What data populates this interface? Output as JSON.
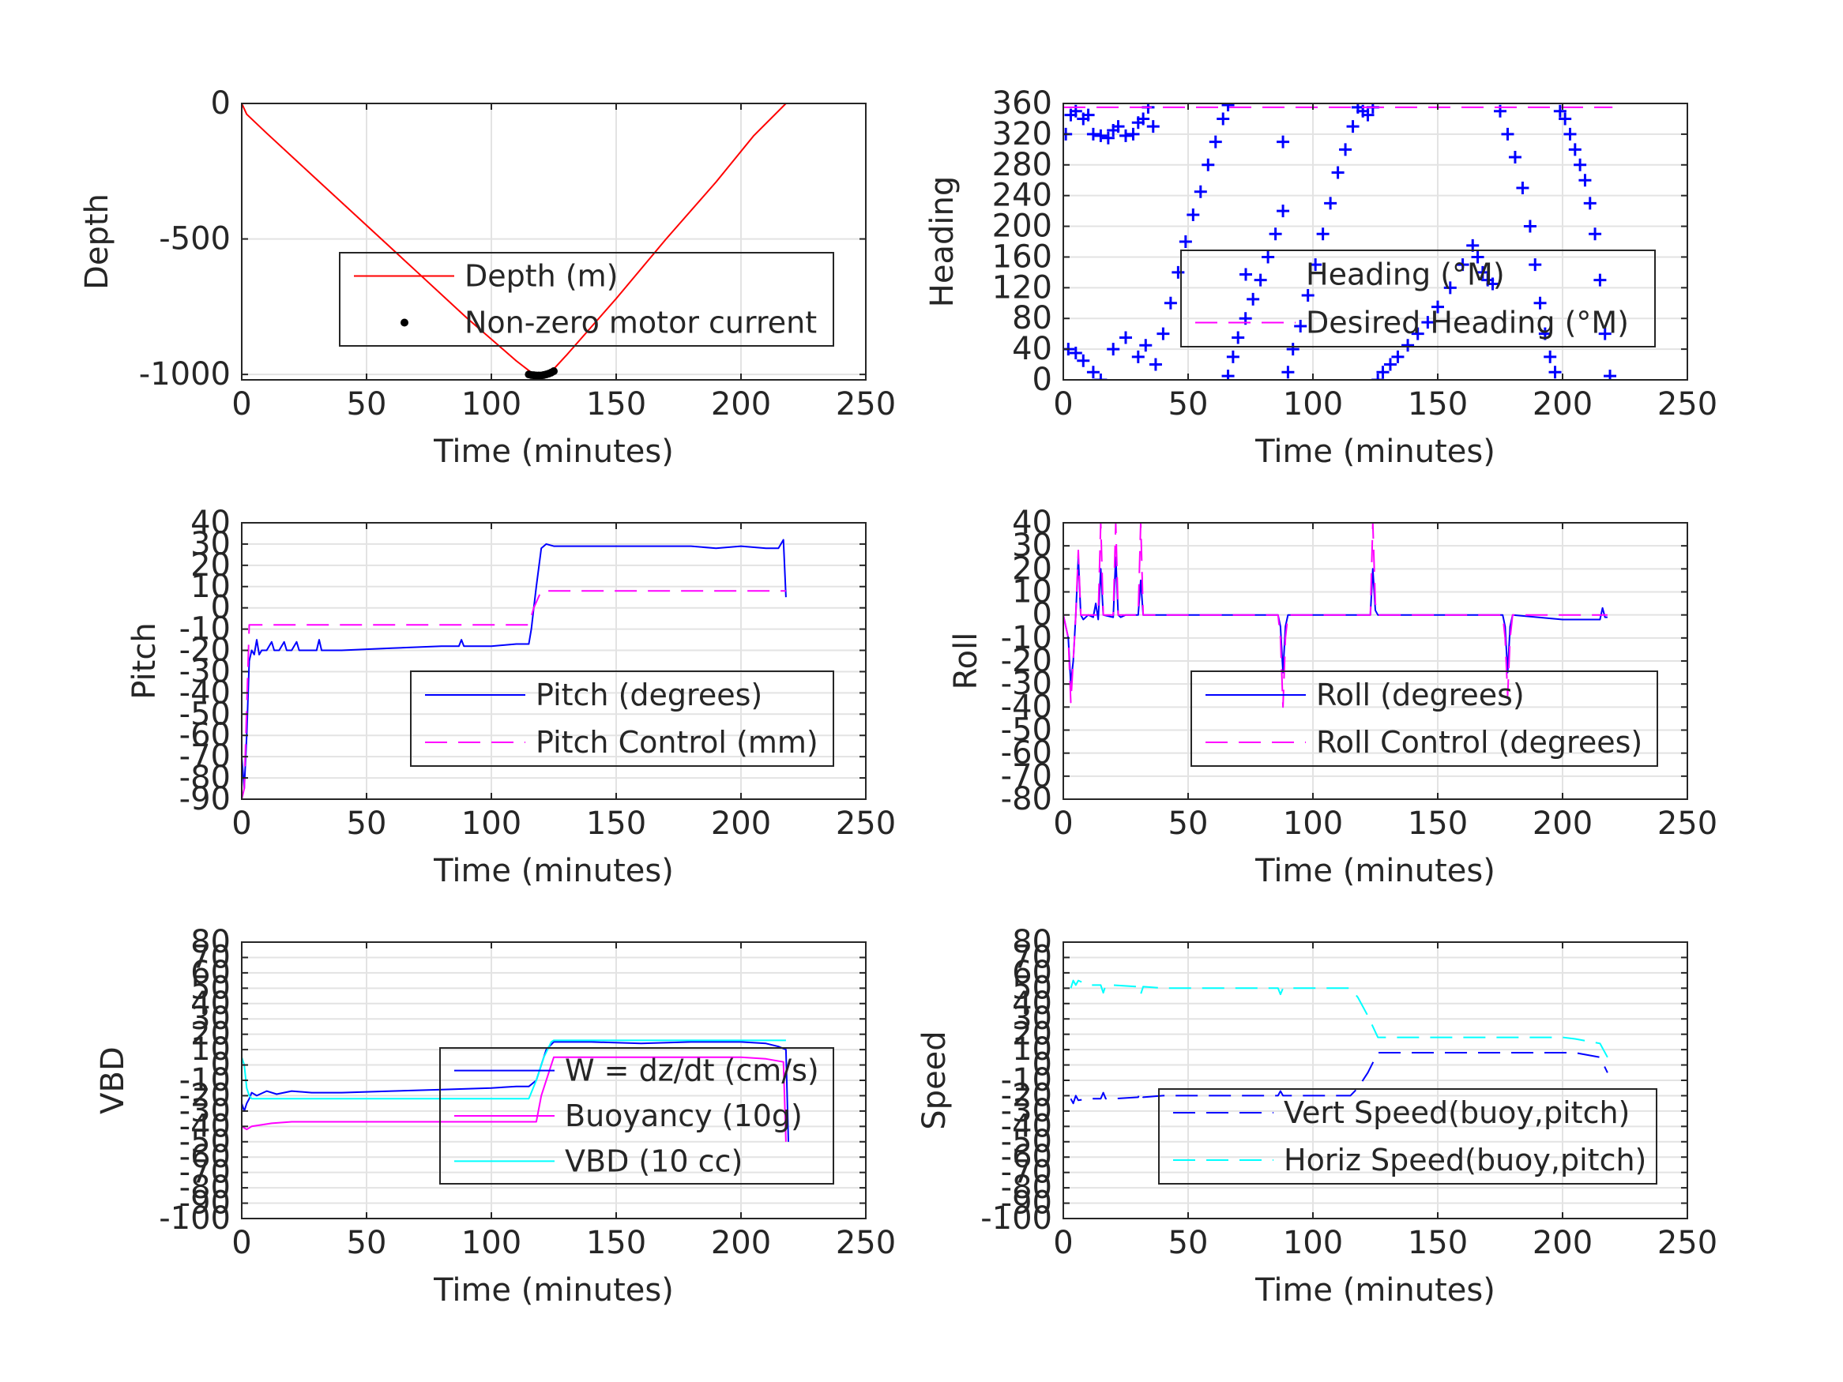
{
  "chart_data": [
    {
      "type": "line",
      "xlabel": "Time (minutes)",
      "ylabel": "Depth",
      "xlim": [
        0,
        250
      ],
      "ylim": [
        -1020,
        0
      ],
      "xticks": [
        0,
        50,
        100,
        150,
        200,
        250
      ],
      "yticks": [
        -1000,
        -500,
        0
      ],
      "ytick_labels": [
        "-1000",
        "-500",
        "0"
      ],
      "grid": true,
      "legend_position": "center-right",
      "series": [
        {
          "name": "Depth (m)",
          "color": "#ff0000",
          "style": "solid",
          "x": [
            0,
            2,
            10,
            30,
            50,
            70,
            90,
            110,
            117,
            120,
            124,
            130,
            150,
            170,
            190,
            205,
            218
          ],
          "y": [
            0,
            -40,
            -110,
            -280,
            -450,
            -620,
            -790,
            -950,
            -1000,
            -1005,
            -990,
            -930,
            -720,
            -500,
            -290,
            -120,
            0
          ]
        },
        {
          "name": "Non-zero motor current",
          "color": "#000000",
          "style": "dots",
          "x": [
            115,
            116,
            117,
            118,
            119,
            120,
            121,
            122,
            123,
            124,
            125
          ],
          "y": [
            -1000,
            -1002,
            -1003,
            -1004,
            -1004,
            -1004,
            -1002,
            -1000,
            -997,
            -993,
            -988
          ]
        }
      ]
    },
    {
      "type": "scatter",
      "xlabel": "Time (minutes)",
      "ylabel": "Heading",
      "xlim": [
        0,
        250
      ],
      "ylim": [
        0,
        360
      ],
      "xticks": [
        0,
        50,
        100,
        150,
        200,
        250
      ],
      "yticks": [
        0,
        40,
        80,
        120,
        160,
        200,
        240,
        280,
        320,
        360
      ],
      "ytick_labels": [
        "0",
        "40",
        "80",
        "120",
        "160",
        "200",
        "240",
        "280",
        "320",
        "360"
      ],
      "grid": true,
      "legend_position": "center-right",
      "series": [
        {
          "name": "Heading (°M)",
          "color": "#0000ff",
          "style": "plus",
          "x": [
            1,
            3,
            5,
            8,
            10,
            12,
            15,
            18,
            20,
            22,
            25,
            28,
            30,
            32,
            34,
            36,
            2,
            5,
            8,
            12,
            15,
            20,
            25,
            30,
            33,
            37,
            40,
            43,
            46,
            49,
            52,
            55,
            58,
            61,
            64,
            66,
            66,
            68,
            70,
            73,
            76,
            79,
            82,
            85,
            88,
            88,
            90,
            92,
            95,
            98,
            101,
            104,
            107,
            110,
            113,
            116,
            118,
            120,
            122,
            124,
            126,
            128,
            131,
            134,
            138,
            142,
            146,
            150,
            155,
            160,
            164,
            166,
            168,
            170,
            172,
            175,
            178,
            181,
            184,
            187,
            189,
            191,
            193,
            195,
            197,
            199,
            201,
            203,
            205,
            207,
            209,
            211,
            213,
            215,
            217,
            219
          ],
          "y": [
            320,
            345,
            350,
            340,
            345,
            320,
            318,
            315,
            325,
            330,
            318,
            320,
            335,
            340,
            355,
            330,
            40,
            35,
            25,
            10,
            0,
            40,
            55,
            30,
            45,
            20,
            60,
            100,
            140,
            180,
            215,
            245,
            280,
            310,
            340,
            358,
            5,
            30,
            55,
            80,
            105,
            130,
            160,
            190,
            220,
            310,
            10,
            40,
            70,
            110,
            150,
            190,
            230,
            270,
            300,
            330,
            355,
            350,
            345,
            355,
            0,
            10,
            20,
            30,
            45,
            60,
            75,
            95,
            120,
            150,
            175,
            160,
            140,
            130,
            125,
            350,
            320,
            290,
            250,
            200,
            150,
            100,
            60,
            30,
            10,
            350,
            340,
            320,
            300,
            280,
            260,
            230,
            190,
            130,
            60,
            5
          ]
        },
        {
          "name": "Desired Heading (°M)",
          "color": "#ff00ff",
          "style": "dashed",
          "x": [
            0,
            220
          ],
          "y": [
            355,
            355
          ]
        }
      ]
    },
    {
      "type": "line",
      "xlabel": "Time (minutes)",
      "ylabel": "Pitch",
      "xlim": [
        0,
        250
      ],
      "ylim": [
        -90,
        40
      ],
      "xticks": [
        0,
        50,
        100,
        150,
        200,
        250
      ],
      "yticks": [
        -90,
        -80,
        -70,
        -60,
        -50,
        -40,
        -30,
        -20,
        -10,
        0,
        10,
        20,
        30,
        40
      ],
      "ytick_labels": [
        "-90",
        "-80",
        "-70",
        "-60",
        "-50",
        "-40",
        "-30",
        "-20",
        "-10",
        "0",
        "10",
        "20",
        "30",
        "40"
      ],
      "grid": true,
      "legend_position": "bottom-right",
      "series": [
        {
          "name": "Pitch (degrees)",
          "color": "#0000ff",
          "style": "solid",
          "x": [
            0,
            1,
            2,
            3,
            4,
            5,
            6,
            7,
            8,
            10,
            12,
            13,
            15,
            17,
            18,
            20,
            22,
            23,
            25,
            30,
            31,
            32,
            40,
            60,
            80,
            87,
            88,
            89,
            100,
            110,
            115,
            116,
            117,
            118,
            120,
            122,
            125,
            150,
            170,
            180,
            190,
            200,
            210,
            215,
            217,
            218
          ],
          "y": [
            -70,
            -85,
            -60,
            -25,
            -20,
            -22,
            -15,
            -22,
            -20,
            -20,
            -16,
            -20,
            -20,
            -16,
            -20,
            -20,
            -16,
            -20,
            -20,
            -20,
            -15,
            -20,
            -20,
            -19,
            -18,
            -18,
            -15,
            -18,
            -18,
            -17,
            -17,
            -10,
            0,
            10,
            28,
            30,
            29,
            29,
            29,
            29,
            28,
            29,
            28,
            28,
            32,
            5
          ]
        },
        {
          "name": "Pitch Control (mm)",
          "color": "#ff00ff",
          "style": "dashed",
          "x": [
            0,
            1,
            3,
            5,
            115,
            117,
            120,
            218
          ],
          "y": [
            -90,
            -85,
            -8,
            -8,
            -8,
            0,
            8,
            8
          ]
        }
      ]
    },
    {
      "type": "line",
      "xlabel": "Time (minutes)",
      "ylabel": "Roll",
      "xlim": [
        0,
        250
      ],
      "ylim": [
        -80,
        40
      ],
      "xticks": [
        0,
        50,
        100,
        150,
        200,
        250
      ],
      "yticks": [
        -80,
        -70,
        -60,
        -50,
        -40,
        -30,
        -20,
        -10,
        0,
        10,
        20,
        30,
        40
      ],
      "ytick_labels": [
        "-80",
        "-70",
        "-60",
        "-50",
        "-40",
        "-30",
        "-20",
        "-10",
        "0",
        "10",
        "20",
        "30",
        "40"
      ],
      "grid": true,
      "legend_position": "bottom-right",
      "series": [
        {
          "name": "Roll (degrees)",
          "color": "#0000ff",
          "style": "solid",
          "x": [
            0,
            2,
            3,
            4,
            5,
            6,
            7,
            8,
            10,
            12,
            13,
            14,
            15,
            16,
            20,
            21,
            22,
            23,
            25,
            30,
            31,
            32,
            40,
            60,
            86,
            87,
            88,
            89,
            90,
            100,
            120,
            123,
            124,
            125,
            126,
            140,
            170,
            176,
            177,
            178,
            179,
            180,
            200,
            215,
            216,
            217,
            218
          ],
          "y": [
            0,
            -10,
            -30,
            -20,
            0,
            25,
            0,
            -2,
            0,
            -1,
            5,
            -2,
            20,
            0,
            -1,
            25,
            0,
            -1,
            0,
            0,
            15,
            0,
            0,
            0,
            0,
            -5,
            -25,
            -5,
            0,
            0,
            0,
            0,
            20,
            2,
            0,
            0,
            0,
            0,
            -5,
            -25,
            -5,
            0,
            -2,
            -2,
            3,
            -1,
            -1
          ]
        },
        {
          "name": "Roll Control (degrees)",
          "color": "#ff00ff",
          "style": "dashed",
          "x": [
            0,
            2,
            3,
            4,
            5,
            6,
            7,
            8,
            12,
            13,
            14,
            15,
            16,
            20,
            21,
            22,
            23,
            30,
            31,
            32,
            86,
            87,
            88,
            89,
            90,
            123,
            124,
            125,
            126,
            176,
            177,
            178,
            179,
            180,
            218
          ],
          "y": [
            0,
            -10,
            -38,
            -20,
            0,
            28,
            0,
            0,
            0,
            0,
            0,
            40,
            0,
            0,
            40,
            0,
            0,
            0,
            40,
            0,
            0,
            -10,
            -40,
            -10,
            0,
            0,
            40,
            5,
            0,
            0,
            -10,
            -35,
            -10,
            0,
            0
          ]
        }
      ]
    },
    {
      "type": "line",
      "xlabel": "Time (minutes)",
      "ylabel": "VBD",
      "xlim": [
        0,
        250
      ],
      "ylim": [
        -100,
        80
      ],
      "xticks": [
        0,
        50,
        100,
        150,
        200,
        250
      ],
      "yticks": [
        -100,
        -90,
        -80,
        -70,
        -60,
        -50,
        -40,
        -30,
        -20,
        -10,
        0,
        10,
        20,
        30,
        40,
        50,
        60,
        70,
        80
      ],
      "ytick_labels": [
        "-100",
        "-90",
        "-80",
        "-70",
        "-60",
        "-50",
        "-40",
        "-30",
        "-20",
        "-10",
        "0",
        "10",
        "20",
        "30",
        "40",
        "50",
        "60",
        "70",
        "80"
      ],
      "grid": true,
      "legend_position": "bottom-right",
      "series": [
        {
          "name": "W = dz/dt (cm/s)",
          "color": "#0000ff",
          "style": "solid",
          "x": [
            0,
            1,
            2,
            3,
            4,
            6,
            10,
            14,
            20,
            28,
            40,
            60,
            80,
            100,
            110,
            115,
            118,
            120,
            122,
            125,
            140,
            160,
            180,
            200,
            210,
            215,
            218,
            219
          ],
          "y": [
            -25,
            -30,
            -25,
            -22,
            -18,
            -20,
            -17,
            -19,
            -17,
            -18,
            -18,
            -17,
            -16,
            -15,
            -14,
            -14,
            -10,
            0,
            10,
            15,
            15,
            14,
            15,
            15,
            14,
            12,
            10,
            -50
          ]
        },
        {
          "name": "Buoyancy (10g)",
          "color": "#ff00ff",
          "style": "solid",
          "x": [
            0,
            2,
            4,
            12,
            20,
            115,
            118,
            120,
            124,
            125,
            200,
            210,
            217,
            218
          ],
          "y": [
            -40,
            -42,
            -40,
            -38,
            -37,
            -37,
            -37,
            -20,
            0,
            5,
            5,
            4,
            2,
            -50
          ]
        },
        {
          "name": "VBD (10 cc)",
          "color": "#00ffff",
          "style": "solid",
          "x": [
            0,
            1,
            2,
            3,
            4,
            6,
            20,
            115,
            118,
            121,
            124,
            125,
            218
          ],
          "y": [
            5,
            0,
            -15,
            -20,
            -22,
            -22,
            -22,
            -22,
            -10,
            5,
            15,
            16,
            16
          ]
        }
      ]
    },
    {
      "type": "line",
      "xlabel": "Time (minutes)",
      "ylabel": "Speed",
      "xlim": [
        0,
        250
      ],
      "ylim": [
        -100,
        80
      ],
      "xticks": [
        0,
        50,
        100,
        150,
        200,
        250
      ],
      "yticks": [
        -100,
        -90,
        -80,
        -70,
        -60,
        -50,
        -40,
        -30,
        -20,
        -10,
        0,
        10,
        20,
        30,
        40,
        50,
        60,
        70,
        80
      ],
      "ytick_labels": [
        "-100",
        "-90",
        "-80",
        "-70",
        "-60",
        "-50",
        "-40",
        "-30",
        "-20",
        "-10",
        "0",
        "10",
        "20",
        "30",
        "40",
        "50",
        "60",
        "70",
        "80"
      ],
      "grid": true,
      "legend_position": "bottom-right",
      "series": [
        {
          "name": "Vert Speed(buoy,pitch)",
          "color": "#0000ff",
          "style": "dashed",
          "x": [
            3,
            4,
            5,
            6,
            10,
            15,
            16,
            17,
            20,
            30,
            31,
            32,
            40,
            60,
            86,
            87,
            88,
            100,
            115,
            118,
            122,
            126,
            150,
            175,
            200,
            205,
            215,
            218
          ],
          "y": [
            -22,
            -25,
            -20,
            -23,
            -22,
            -22,
            -18,
            -22,
            -22,
            -21,
            -17,
            -21,
            -20,
            -20,
            -20,
            -17,
            -20,
            -20,
            -20,
            -15,
            -5,
            8,
            8,
            8,
            8,
            8,
            5,
            -5
          ]
        },
        {
          "name": "Horiz Speed(buoy,pitch)",
          "color": "#00ffff",
          "style": "dashed",
          "x": [
            3,
            4,
            5,
            6,
            10,
            15,
            16,
            17,
            20,
            30,
            31,
            32,
            40,
            60,
            86,
            87,
            88,
            100,
            115,
            118,
            122,
            126,
            150,
            175,
            200,
            205,
            215,
            218
          ],
          "y": [
            50,
            55,
            52,
            55,
            52,
            52,
            47,
            52,
            52,
            51,
            46,
            51,
            50,
            50,
            50,
            46,
            50,
            50,
            50,
            44,
            32,
            18,
            18,
            18,
            18,
            17,
            14,
            5
          ]
        }
      ]
    }
  ]
}
